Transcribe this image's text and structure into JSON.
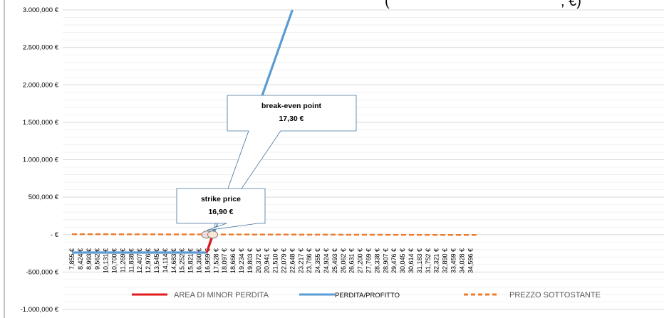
{
  "chart_data": {
    "type": "line",
    "title_fragment": "(",
    "title_fragment_2": "; €)",
    "ylim": [
      -1000000,
      3000000
    ],
    "y_ticks": [
      {
        "value": 3000000,
        "label": "3.000,000 €"
      },
      {
        "value": 2500000,
        "label": "2.500,000 €"
      },
      {
        "value": 2000000,
        "label": "2.000,000 €"
      },
      {
        "value": 1500000,
        "label": "1.500,000 €"
      },
      {
        "value": 1000000,
        "label": "1.000,000 €"
      },
      {
        "value": 500000,
        "label": "500,000 €"
      },
      {
        "value": 0,
        "label": "-  €"
      },
      {
        "value": -500000,
        "label": "-500,000 €"
      },
      {
        "value": -1000000,
        "label": "-1.000,000 €"
      }
    ],
    "x_labels": [
      "7,855 €",
      "8,424 €",
      "8,993 €",
      "9,562 €",
      "10,131 €",
      "10,700 €",
      "11,269 €",
      "11,838 €",
      "12,407 €",
      "12,976 €",
      "13,545 €",
      "14,114 €",
      "14,683 €",
      "15,252 €",
      "15,821 €",
      "16,390 €",
      "16,959 €",
      "17,528 €",
      "18,097 €",
      "18,666 €",
      "19,234 €",
      "19,803 €",
      "20,372 €",
      "20,941 €",
      "21,510 €",
      "22,079 €",
      "22,648 €",
      "23,217 €",
      "23,786 €",
      "24,355 €",
      "24,924 €",
      "25,493 €",
      "26,062 €",
      "26,631 €",
      "27,200 €",
      "27,769 €",
      "28,338 €",
      "28,907 €",
      "29,476 €",
      "30,045 €",
      "30,614 €",
      "31,183 €",
      "31,752 €",
      "32,321 €",
      "32,890 €",
      "33,459 €",
      "34,028 €",
      "34,596 €"
    ],
    "x_range": [
      7.855,
      35.0
    ],
    "series": [
      {
        "name": "AREA DI MINOR PERDITA",
        "color": "#e31a1c",
        "style": "solid",
        "points": [
          [
            16.9,
            -240000
          ],
          [
            17.3,
            0
          ]
        ]
      },
      {
        "name": "PERDITA/PROFITTO",
        "color": "#5b9bd5",
        "style": "solid",
        "points": [
          [
            7.855,
            -240000
          ],
          [
            16.9,
            -240000
          ],
          [
            22.648,
            3000000
          ]
        ]
      },
      {
        "name": "PREZZO SOTTOSTANTE",
        "color": "#ed7d31",
        "style": "dashed",
        "points": [
          [
            7.855,
            5000
          ],
          [
            35.0,
            -5000
          ]
        ]
      }
    ],
    "annotations": [
      {
        "id": "breakeven",
        "title": "break-even point",
        "value_label": "17,30 €",
        "x": 17.3,
        "y": 0
      },
      {
        "id": "strike",
        "title": "strike price",
        "value_label": "16,90 €",
        "x": 16.9,
        "y": 0
      }
    ],
    "legend_position": "bottom",
    "grid": true
  }
}
